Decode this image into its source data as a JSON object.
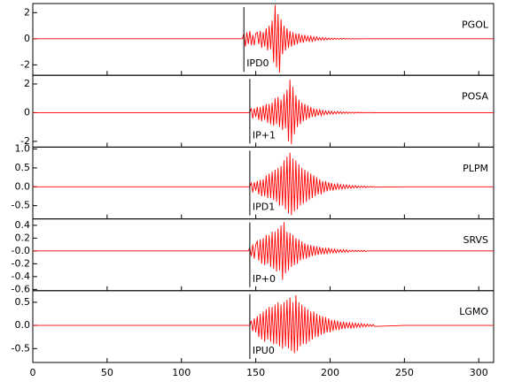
{
  "chart_data": {
    "type": "line",
    "xlim": [
      0,
      310
    ],
    "xticks": [
      0,
      50,
      100,
      150,
      200,
      250,
      300
    ],
    "x": [
      0,
      100,
      141,
      142,
      143,
      144,
      145,
      146,
      147,
      148,
      149,
      150,
      151,
      152,
      153,
      154,
      155,
      156,
      157,
      158,
      159,
      160,
      161,
      162,
      163,
      164,
      165,
      166,
      167,
      168,
      169,
      170,
      171,
      172,
      173,
      174,
      175,
      176,
      177,
      178,
      179,
      180,
      181,
      182,
      183,
      184,
      185,
      186,
      187,
      188,
      189,
      190,
      191,
      192,
      193,
      194,
      195,
      196,
      197,
      198,
      199,
      200,
      201,
      202,
      203,
      204,
      205,
      206,
      207,
      208,
      209,
      210,
      211,
      212,
      213,
      214,
      215,
      216,
      217,
      218,
      219,
      220,
      221,
      222,
      223,
      224,
      225,
      226,
      227,
      228,
      229,
      230,
      250,
      280,
      310
    ],
    "series": [
      {
        "name": "PGOL",
        "color": "#ff0000",
        "ylim": [
          -2.8,
          2.7
        ],
        "yticks": [
          -2,
          0,
          2
        ],
        "pick": 142,
        "pick_label": "IPD0",
        "values": [
          0,
          0,
          0,
          0.4,
          -0.6,
          0.5,
          -0.4,
          0.6,
          -0.5,
          0.3,
          -0.5,
          0.4,
          0.5,
          -0.4,
          0.6,
          -0.7,
          0.5,
          -0.6,
          0.8,
          -0.9,
          1.0,
          -0.8,
          1.4,
          -1.8,
          2.6,
          -2.2,
          1.9,
          -2.6,
          1.5,
          -1.2,
          1.0,
          -0.9,
          0.8,
          -0.7,
          0.6,
          -0.6,
          0.5,
          -0.5,
          0.4,
          -0.4,
          0.4,
          -0.3,
          0.3,
          -0.3,
          0.3,
          -0.2,
          0.2,
          -0.2,
          0.2,
          -0.2,
          0.15,
          -0.15,
          0.15,
          -0.1,
          0.1,
          -0.1,
          0.1,
          -0.1,
          0.08,
          -0.08,
          0.06,
          -0.06,
          0.05,
          -0.05,
          0.05,
          -0.04,
          0.04,
          -0.04,
          0.03,
          -0.03,
          0.03,
          -0.02,
          0.02,
          -0.02,
          0.02,
          -0.02,
          0.01,
          -0.01,
          0.01,
          -0.01,
          0.01,
          -0.01,
          0.01,
          -0.01,
          0,
          0,
          0,
          0,
          0,
          0,
          0,
          0,
          0,
          0,
          0
        ]
      },
      {
        "name": "POSA",
        "color": "#ff0000",
        "ylim": [
          -2.4,
          2.6
        ],
        "yticks": [
          -2,
          0,
          2
        ],
        "pick": 146,
        "pick_label": "IP+1",
        "values": [
          0,
          0,
          0,
          0,
          0,
          0,
          0,
          0,
          0.3,
          -0.4,
          0.3,
          -0.3,
          0.4,
          -0.5,
          0.4,
          -0.6,
          0.5,
          -0.5,
          0.6,
          -0.7,
          0.6,
          -0.8,
          0.7,
          -0.9,
          1.0,
          -0.8,
          1.1,
          -1.0,
          0.9,
          -1.2,
          1.3,
          -1.1,
          1.6,
          -2.0,
          2.3,
          -2.2,
          1.8,
          -1.5,
          1.2,
          -1.0,
          0.9,
          -0.8,
          0.7,
          -0.6,
          0.6,
          -0.5,
          0.5,
          -0.4,
          0.4,
          -0.3,
          0.3,
          -0.3,
          0.25,
          -0.2,
          0.2,
          -0.2,
          0.15,
          -0.15,
          0.12,
          -0.12,
          0.1,
          -0.1,
          0.1,
          -0.1,
          0.08,
          -0.08,
          0.08,
          -0.06,
          0.06,
          -0.06,
          0.05,
          -0.05,
          0.05,
          -0.05,
          0.04,
          -0.04,
          0.04,
          -0.04,
          0.03,
          -0.03,
          0.03,
          -0.03,
          0.03,
          -0.03,
          0.02,
          -0.02,
          0.02,
          -0.02,
          0.02,
          -0.02,
          0.01,
          -0.01,
          0,
          0,
          0
        ]
      },
      {
        "name": "PLPM",
        "color": "#ff0000",
        "ylim": [
          -0.85,
          1.05
        ],
        "yticks": [
          -0.5,
          {
            "value": 0,
            "label": "0.0"
          },
          0.5,
          {
            "value": 1,
            "label": "1.0"
          }
        ],
        "pick": 146,
        "pick_label": "IPD1",
        "values": [
          0,
          0,
          0,
          0,
          0,
          0,
          0,
          0,
          0.1,
          -0.15,
          0.12,
          -0.1,
          0.15,
          -0.2,
          0.18,
          -0.25,
          0.2,
          -0.25,
          0.3,
          -0.3,
          0.35,
          -0.3,
          0.4,
          -0.35,
          0.45,
          -0.4,
          0.5,
          -0.5,
          0.55,
          -0.5,
          0.7,
          -0.6,
          0.8,
          -0.7,
          0.9,
          -0.75,
          0.75,
          -0.65,
          0.7,
          -0.6,
          0.6,
          -0.5,
          0.5,
          -0.45,
          0.45,
          -0.4,
          0.4,
          -0.35,
          0.35,
          -0.3,
          0.3,
          -0.25,
          0.25,
          -0.2,
          0.2,
          -0.2,
          0.15,
          -0.15,
          0.15,
          -0.12,
          0.12,
          -0.1,
          0.1,
          -0.1,
          0.08,
          -0.08,
          0.08,
          -0.06,
          0.06,
          -0.06,
          0.05,
          -0.05,
          0.05,
          -0.04,
          0.04,
          -0.04,
          0.03,
          -0.03,
          0.03,
          -0.03,
          0.02,
          -0.02,
          0.02,
          -0.02,
          0.02,
          -0.02,
          0.01,
          -0.01,
          0.01,
          -0.01,
          0.01,
          -0.01,
          0,
          0,
          0
        ]
      },
      {
        "name": "SRVS",
        "color": "#ff0000",
        "ylim": [
          -0.62,
          0.5
        ],
        "yticks": [
          -0.6,
          -0.4,
          -0.2,
          {
            "value": 0,
            "label": "-0.0"
          },
          0.2,
          0.4
        ],
        "pick": 146,
        "pick_label": "IP+0",
        "values": [
          0,
          0,
          0,
          0,
          0,
          0,
          0,
          0.05,
          -0.08,
          0.1,
          -0.12,
          0.1,
          0.15,
          -0.15,
          0.18,
          -0.2,
          0.2,
          -0.22,
          0.25,
          -0.2,
          0.25,
          -0.25,
          0.3,
          -0.28,
          0.3,
          -0.32,
          0.35,
          -0.3,
          0.4,
          -0.45,
          0.45,
          -0.35,
          0.3,
          -0.3,
          0.28,
          -0.25,
          0.25,
          -0.22,
          0.2,
          -0.2,
          0.18,
          -0.15,
          0.15,
          -0.13,
          0.12,
          -0.12,
          0.1,
          -0.1,
          0.09,
          -0.08,
          0.08,
          -0.07,
          0.07,
          -0.06,
          0.06,
          -0.05,
          0.05,
          -0.05,
          0.04,
          -0.04,
          0.04,
          -0.03,
          0.03,
          -0.03,
          0.03,
          -0.03,
          0.02,
          -0.02,
          0.02,
          -0.02,
          0.02,
          -0.02,
          0.02,
          -0.02,
          0.01,
          -0.01,
          0.01,
          -0.01,
          0.01,
          -0.01,
          0.01,
          -0.01,
          0.01,
          -0.01,
          0.01,
          -0.01,
          0,
          0,
          0,
          0,
          0,
          0,
          0,
          0,
          0
        ]
      },
      {
        "name": "LGMO",
        "color": "#ff0000",
        "ylim": [
          -0.8,
          0.75
        ],
        "yticks": [
          -0.5,
          {
            "value": 0,
            "label": "0.0"
          },
          0.5
        ],
        "pick": 146,
        "pick_label": "IPU0",
        "values": [
          0,
          0,
          0,
          0,
          0,
          0,
          0,
          0,
          0.1,
          -0.12,
          0.15,
          -0.15,
          0.2,
          -0.25,
          0.25,
          -0.3,
          0.3,
          -0.35,
          0.35,
          -0.3,
          0.4,
          -0.35,
          0.4,
          -0.4,
          0.45,
          -0.4,
          0.5,
          -0.45,
          0.45,
          -0.5,
          0.5,
          -0.45,
          0.55,
          -0.5,
          0.6,
          -0.55,
          0.5,
          -0.6,
          0.65,
          -0.55,
          0.5,
          -0.45,
          0.45,
          -0.4,
          0.4,
          -0.4,
          0.35,
          -0.35,
          0.3,
          -0.3,
          0.3,
          -0.25,
          0.25,
          -0.25,
          0.22,
          -0.2,
          0.2,
          -0.18,
          0.18,
          -0.15,
          0.15,
          -0.15,
          0.12,
          -0.12,
          0.12,
          -0.1,
          0.1,
          -0.1,
          0.08,
          -0.08,
          0.08,
          -0.07,
          0.07,
          -0.06,
          0.06,
          -0.06,
          0.05,
          -0.05,
          0.05,
          -0.04,
          0.04,
          -0.04,
          0.04,
          -0.03,
          0.03,
          -0.03,
          0.03,
          -0.02,
          0.02,
          -0.02,
          0.02,
          -0.02,
          0,
          0,
          0
        ]
      }
    ]
  }
}
